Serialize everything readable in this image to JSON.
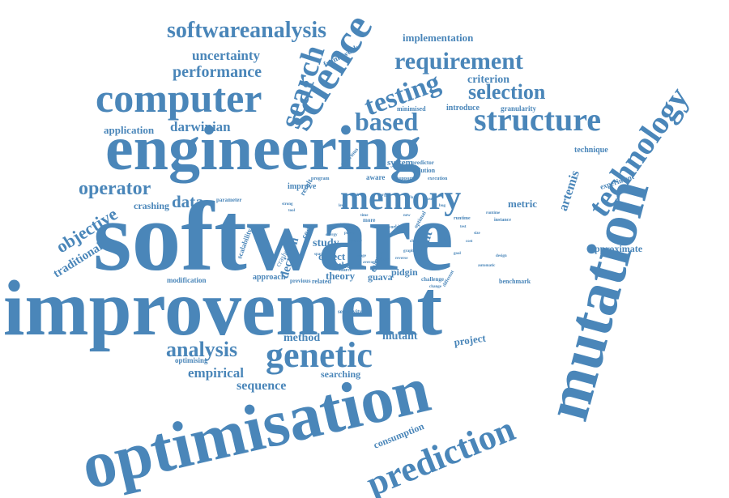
{
  "cloud": {
    "color": "#4a86b9",
    "background": "#ffffff",
    "words": [
      "software",
      "improvement",
      "engineering",
      "optimisation",
      "mutation",
      "computer",
      "science",
      "structure",
      "genetic",
      "prediction",
      "memory",
      "technology",
      "search",
      "softwareanalysis",
      "requirement",
      "testing",
      "based",
      "analysis",
      "selection",
      "performance",
      "operator",
      "uncertainty",
      "data",
      "empirical",
      "objective",
      "darwinian",
      "sequence",
      "artemis",
      "implementation",
      "method",
      "mutant",
      "traditional",
      "project",
      "criterion",
      "fault",
      "searching",
      "consumption",
      "decision",
      "application",
      "theory",
      "study",
      "defect",
      "crashing",
      "metric",
      "approximate",
      "technique",
      "framework",
      "system",
      "improve",
      "scalability",
      "introduce",
      "granularity",
      "minimised",
      "guava",
      "pidgin",
      "thesis",
      "approach",
      "event",
      "solution",
      "predictor",
      "modification",
      "benchmark",
      "experiment",
      "optimising",
      "challenge",
      "crasher",
      "code",
      "parameter",
      "previous",
      "related",
      "sensitivity",
      "result",
      "aware",
      "laborious",
      "program",
      "support",
      "execution",
      "source",
      "more",
      "world",
      "runtime",
      "instance",
      "value",
      "optimal",
      "different",
      "space",
      "reverse",
      "change",
      "report",
      "average",
      "usage",
      "time",
      "level",
      "large",
      "new",
      "strong",
      "tool",
      "stack",
      "fix",
      "case",
      "bug",
      "test",
      "size",
      "cost",
      "goal",
      "chain",
      "graph",
      "quality",
      "power",
      "model",
      "energy",
      "automatic",
      "runtime",
      "design"
    ]
  }
}
